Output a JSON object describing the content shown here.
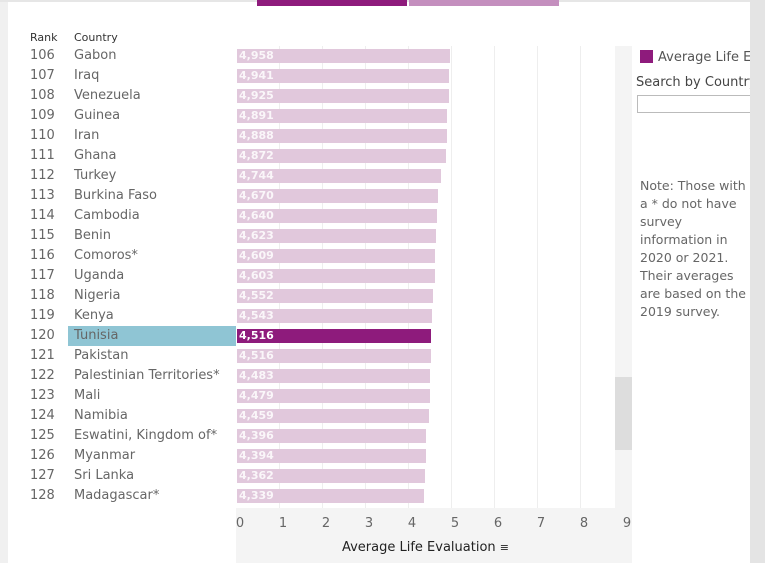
{
  "colors": {
    "bar": "#e1c8dc",
    "selected_bar": "#8e1b7c",
    "selected_row": "#8fc5d4",
    "legend": "#8e1b7c",
    "top_tab_1": "#8e1b7c",
    "top_tab_2": "#c48fbe"
  },
  "headers": {
    "rank": "Rank",
    "country": "Country"
  },
  "selected_country": "Tunisia",
  "legend": {
    "label": "Average Life E",
    "icon": "square-swatch"
  },
  "search": {
    "label": "Search by Country",
    "value": ""
  },
  "note": "Note: Those with a * do not have survey information in 2020 or 2021. Their averages are based on the 2019 survey.",
  "chart_data": {
    "type": "bar",
    "orientation": "horizontal",
    "xlabel": "Average Life Evaluation",
    "xlim": [
      0,
      9
    ],
    "xticks": [
      "0",
      "1",
      "2",
      "3",
      "4",
      "5",
      "6",
      "7",
      "8",
      "9"
    ],
    "grid": true,
    "rows": [
      {
        "rank": "106",
        "country": "Gabon",
        "value": 4.958,
        "label": "4,958"
      },
      {
        "rank": "107",
        "country": "Iraq",
        "value": 4.941,
        "label": "4,941"
      },
      {
        "rank": "108",
        "country": "Venezuela",
        "value": 4.925,
        "label": "4,925"
      },
      {
        "rank": "109",
        "country": "Guinea",
        "value": 4.891,
        "label": "4,891"
      },
      {
        "rank": "110",
        "country": "Iran",
        "value": 4.888,
        "label": "4,888"
      },
      {
        "rank": "111",
        "country": "Ghana",
        "value": 4.872,
        "label": "4,872"
      },
      {
        "rank": "112",
        "country": "Turkey",
        "value": 4.744,
        "label": "4,744"
      },
      {
        "rank": "113",
        "country": "Burkina Faso",
        "value": 4.67,
        "label": "4,670"
      },
      {
        "rank": "114",
        "country": "Cambodia",
        "value": 4.64,
        "label": "4,640"
      },
      {
        "rank": "115",
        "country": "Benin",
        "value": 4.623,
        "label": "4,623"
      },
      {
        "rank": "116",
        "country": "Comoros*",
        "value": 4.609,
        "label": "4,609"
      },
      {
        "rank": "117",
        "country": "Uganda",
        "value": 4.603,
        "label": "4,603"
      },
      {
        "rank": "118",
        "country": "Nigeria",
        "value": 4.552,
        "label": "4,552"
      },
      {
        "rank": "119",
        "country": "Kenya",
        "value": 4.543,
        "label": "4,543"
      },
      {
        "rank": "120",
        "country": "Tunisia",
        "value": 4.516,
        "label": "4,516"
      },
      {
        "rank": "121",
        "country": "Pakistan",
        "value": 4.516,
        "label": "4,516"
      },
      {
        "rank": "122",
        "country": "Palestinian Territories*",
        "value": 4.483,
        "label": "4,483"
      },
      {
        "rank": "123",
        "country": "Mali",
        "value": 4.479,
        "label": "4,479"
      },
      {
        "rank": "124",
        "country": "Namibia",
        "value": 4.459,
        "label": "4,459"
      },
      {
        "rank": "125",
        "country": "Eswatini, Kingdom of*",
        "value": 4.396,
        "label": "4,396"
      },
      {
        "rank": "126",
        "country": "Myanmar",
        "value": 4.394,
        "label": "4,394"
      },
      {
        "rank": "127",
        "country": "Sri Lanka",
        "value": 4.362,
        "label": "4,362"
      },
      {
        "rank": "128",
        "country": "Madagascar*",
        "value": 4.339,
        "label": "4,339"
      }
    ]
  }
}
